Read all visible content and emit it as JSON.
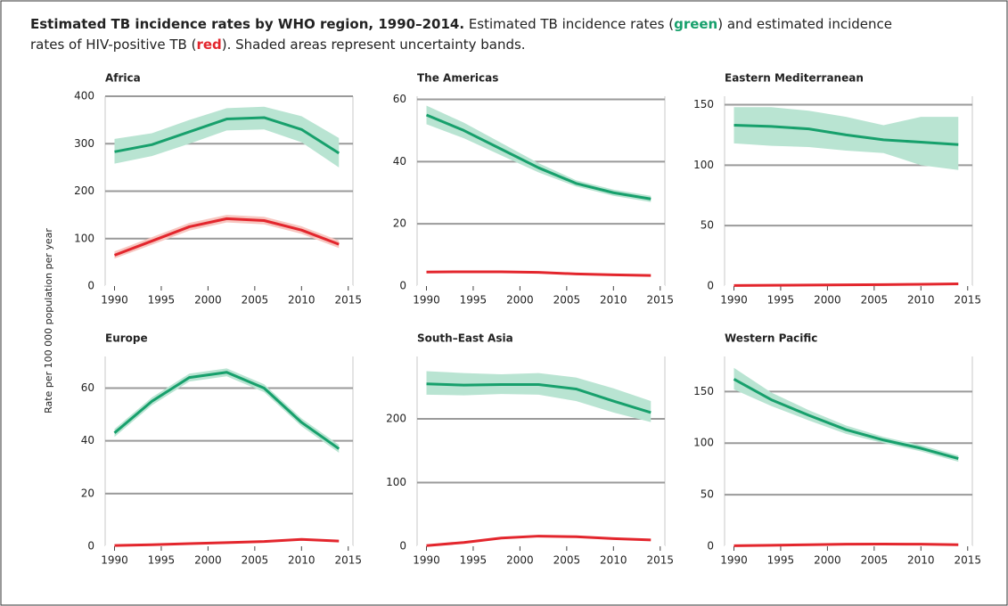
{
  "caption": {
    "title": "Estimated TB incidence rates by WHO region, 1990–2014.",
    "parts": [
      "Estimated TB incidence rates (",
      "green",
      ") and estimated incidence",
      "rates of HIV-positive TB (",
      "red",
      "). Shaded areas represent uncertainty bands."
    ]
  },
  "ylabel": "Rate per 100 000 population per year",
  "chart_data": [
    {
      "type": "line",
      "title": "Africa",
      "x": [
        1990,
        1994,
        1998,
        2002,
        2006,
        2010,
        2014
      ],
      "xlim": [
        1989,
        2015.5
      ],
      "xticks": [
        1990,
        1995,
        2000,
        2005,
        2010,
        2015
      ],
      "ylim": [
        0,
        400
      ],
      "yticks": [
        0,
        100,
        200,
        300,
        400
      ],
      "series": [
        {
          "color": "#17a06c",
          "band_color": "#b9e4d2",
          "values": [
            283,
            298,
            325,
            352,
            355,
            330,
            280
          ],
          "upper": [
            310,
            322,
            350,
            375,
            378,
            358,
            312
          ],
          "lower": [
            258,
            274,
            300,
            328,
            330,
            303,
            250
          ]
        },
        {
          "color": "#e3262d",
          "band_color": "#f7c6c0",
          "values": [
            65,
            95,
            125,
            142,
            138,
            118,
            88
          ],
          "upper": [
            73,
            103,
            133,
            150,
            146,
            126,
            96
          ],
          "lower": [
            58,
            87,
            117,
            134,
            130,
            110,
            80
          ]
        }
      ]
    },
    {
      "type": "line",
      "title": "The Americas",
      "x": [
        1990,
        1994,
        1998,
        2002,
        2006,
        2010,
        2014
      ],
      "xlim": [
        1989,
        2015.5
      ],
      "xticks": [
        1990,
        1995,
        2000,
        2005,
        2010,
        2015
      ],
      "ylim": [
        0,
        61
      ],
      "yticks": [
        0,
        20,
        40,
        60
      ],
      "series": [
        {
          "color": "#17a06c",
          "band_color": "#b9e4d2",
          "values": [
            55,
            50,
            44,
            38,
            33,
            30,
            28
          ],
          "upper": [
            58,
            52.5,
            46,
            39.5,
            34,
            31,
            29
          ],
          "lower": [
            52,
            47.5,
            42,
            36.5,
            32,
            29,
            27
          ]
        },
        {
          "color": "#e3262d",
          "band_color": "#f7c6c0",
          "values": [
            4.5,
            4.6,
            4.6,
            4.4,
            3.9,
            3.6,
            3.4
          ],
          "upper": [
            4.8,
            4.9,
            4.9,
            4.7,
            4.2,
            3.9,
            3.7
          ],
          "lower": [
            4.2,
            4.3,
            4.3,
            4.1,
            3.6,
            3.3,
            3.1
          ]
        }
      ]
    },
    {
      "type": "line",
      "title": "Eastern Mediterranean",
      "x": [
        1990,
        1994,
        1998,
        2002,
        2006,
        2010,
        2014
      ],
      "xlim": [
        1989,
        2015.5
      ],
      "xticks": [
        1990,
        1995,
        2000,
        2005,
        2010,
        2015
      ],
      "ylim": [
        0,
        157
      ],
      "yticks": [
        0,
        50,
        100,
        150
      ],
      "series": [
        {
          "color": "#17a06c",
          "band_color": "#b9e4d2",
          "values": [
            133,
            132,
            130,
            125,
            121,
            119,
            117
          ],
          "upper": [
            148,
            148,
            145,
            140,
            133,
            140,
            140
          ],
          "lower": [
            118,
            116,
            115,
            112,
            110,
            100,
            96
          ]
        },
        {
          "color": "#e3262d",
          "band_color": "#f7c6c0",
          "values": [
            0.5,
            0.6,
            0.8,
            1,
            1.2,
            1.5,
            1.8
          ],
          "upper": [
            0.7,
            0.8,
            1,
            1.2,
            1.4,
            1.7,
            2
          ],
          "lower": [
            0.3,
            0.4,
            0.6,
            0.8,
            1,
            1.3,
            1.6
          ]
        }
      ]
    },
    {
      "type": "line",
      "title": "Europe",
      "x": [
        1990,
        1994,
        1998,
        2002,
        2006,
        2010,
        2014
      ],
      "xlim": [
        1989,
        2015.5
      ],
      "xticks": [
        1990,
        1995,
        2000,
        2005,
        2010,
        2015
      ],
      "ylim": [
        0,
        72
      ],
      "yticks": [
        0,
        20,
        40,
        60
      ],
      "series": [
        {
          "color": "#17a06c",
          "band_color": "#b9e4d2",
          "values": [
            43,
            55,
            64,
            66,
            60,
            47,
            37
          ],
          "upper": [
            44.5,
            56.5,
            65.5,
            67.5,
            61.5,
            48.5,
            38.5
          ],
          "lower": [
            41.5,
            53.5,
            62.5,
            64.5,
            58.5,
            45.5,
            35.5
          ]
        },
        {
          "color": "#e3262d",
          "band_color": "#f7c6c0",
          "values": [
            0.3,
            0.6,
            1,
            1.4,
            1.8,
            2.6,
            2
          ],
          "upper": [
            0.5,
            0.8,
            1.2,
            1.6,
            2,
            2.8,
            2.2
          ],
          "lower": [
            0.1,
            0.4,
            0.8,
            1.2,
            1.6,
            2.4,
            1.8
          ]
        }
      ]
    },
    {
      "type": "line",
      "title": "South–East Asia",
      "x": [
        1990,
        1994,
        1998,
        2002,
        2006,
        2010,
        2014
      ],
      "xlim": [
        1989,
        2015.5
      ],
      "xticks": [
        1990,
        1995,
        2000,
        2005,
        2010,
        2015
      ],
      "ylim": [
        0,
        298
      ],
      "yticks": [
        0,
        100,
        200
      ],
      "series": [
        {
          "color": "#17a06c",
          "band_color": "#b9e4d2",
          "values": [
            255,
            253,
            254,
            254,
            247,
            228,
            210
          ],
          "upper": [
            275,
            272,
            270,
            272,
            265,
            248,
            228
          ],
          "lower": [
            238,
            237,
            239,
            238,
            228,
            210,
            195
          ]
        },
        {
          "color": "#e3262d",
          "band_color": "#f7c6c0",
          "values": [
            1,
            6,
            13,
            16,
            15,
            12,
            10
          ],
          "upper": [
            2,
            7,
            14,
            17,
            16,
            13,
            11
          ],
          "lower": [
            0,
            5,
            12,
            15,
            14,
            11,
            9
          ]
        }
      ]
    },
    {
      "type": "line",
      "title": "Western Pacific",
      "x": [
        1990,
        1994,
        1998,
        2002,
        2006,
        2010,
        2014
      ],
      "xlim": [
        1989,
        2015.5
      ],
      "xticks": [
        1990,
        1995,
        2000,
        2005,
        2010,
        2015
      ],
      "ylim": [
        0,
        184
      ],
      "yticks": [
        0,
        50,
        100,
        150
      ],
      "series": [
        {
          "color": "#17a06c",
          "band_color": "#b9e4d2",
          "values": [
            162,
            142,
            127,
            113,
            103,
            95,
            85
          ],
          "upper": [
            173,
            149,
            132,
            117,
            106,
            98,
            88
          ],
          "lower": [
            152,
            136,
            122,
            109,
            100,
            92,
            82
          ]
        },
        {
          "color": "#e3262d",
          "band_color": "#f7c6c0",
          "values": [
            0.5,
            1,
            1.5,
            2,
            2.2,
            2,
            1.5
          ],
          "upper": [
            0.8,
            1.3,
            1.8,
            2.3,
            2.5,
            2.3,
            1.8
          ],
          "lower": [
            0.2,
            0.7,
            1.2,
            1.7,
            1.9,
            1.7,
            1.2
          ]
        }
      ]
    }
  ]
}
